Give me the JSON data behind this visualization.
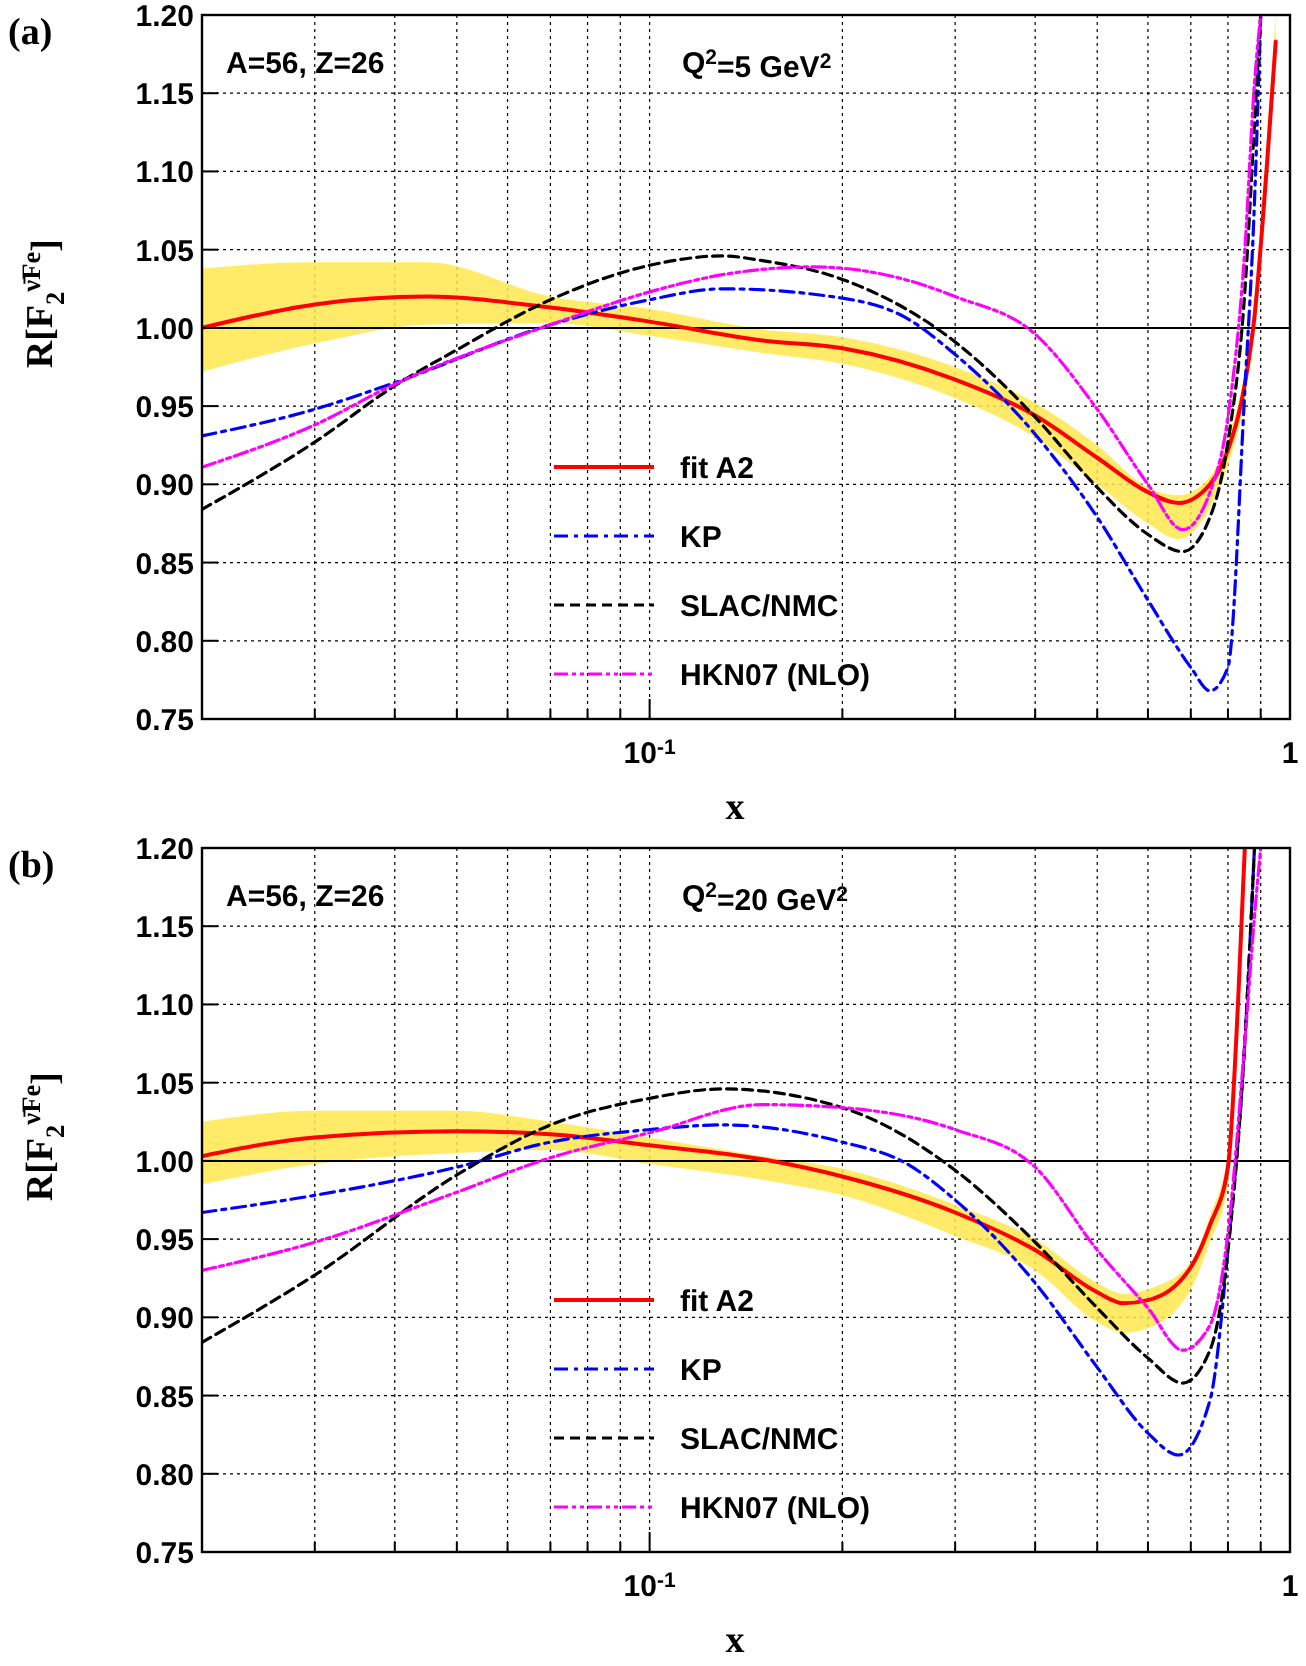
{
  "chart_data": [
    {
      "type": "line",
      "title": "(a)",
      "xlabel": "x",
      "ylabel": "R[F$_{2}$$^{ν̄Fe}$]",
      "log": "x",
      "grid": true,
      "legend": "bottom",
      "xlim": [
        0.02,
        1
      ],
      "ylim": [
        0.75,
        1.2
      ],
      "xticks": [
        {
          "value": 0.02,
          "label": null
        },
        {
          "value": 0.03,
          "label": null
        },
        {
          "value": 0.04,
          "label": null
        },
        {
          "value": 0.05,
          "label": null
        },
        {
          "value": 0.06,
          "label": null
        },
        {
          "value": 0.07,
          "label": null
        },
        {
          "value": 0.08,
          "label": null
        },
        {
          "value": 0.09,
          "label": null
        },
        {
          "value": 0.1,
          "label": "10$^{-1}$"
        },
        {
          "value": 0.2,
          "label": null
        },
        {
          "value": 0.3,
          "label": null
        },
        {
          "value": 0.4,
          "label": null
        },
        {
          "value": 0.5,
          "label": null
        },
        {
          "value": 0.6,
          "label": null
        },
        {
          "value": 0.7,
          "label": null
        },
        {
          "value": 0.8,
          "label": null
        },
        {
          "value": 0.9,
          "label": null
        },
        {
          "value": 1,
          "label": "1"
        }
      ],
      "yticks": [
        {
          "value": 0.75,
          "label": "0.75"
        },
        {
          "value": 0.8,
          "label": "0.80"
        },
        {
          "value": 0.85,
          "label": "0.85"
        },
        {
          "value": 0.9,
          "label": "0.90"
        },
        {
          "value": 0.95,
          "label": "0.95"
        },
        {
          "value": 1.0,
          "label": "1.00"
        },
        {
          "value": 1.05,
          "label": "1.05"
        },
        {
          "value": 1.1,
          "label": "1.10"
        },
        {
          "value": 1.15,
          "label": "1.15"
        },
        {
          "value": 1.2,
          "label": "1.20"
        }
      ],
      "ref_lines": [
        {
          "axis": "y",
          "value": 1.0,
          "color": "#000000",
          "line_style": "solid"
        }
      ],
      "annotations": [
        "A=56, Z=26",
        "Q$^{2}$=5 GeV$^{2}$"
      ],
      "series": [
        {
          "name": "fit A2",
          "color": "#ff0000",
          "line_style": "solid",
          "x": [
            0.02,
            0.03,
            0.045,
            0.07,
            0.1,
            0.15,
            0.2,
            0.3,
            0.4,
            0.5,
            0.6,
            0.67,
            0.75,
            0.8,
            0.85,
            0.88,
            0.92,
            0.95
          ],
          "values": [
            1.0,
            1.015,
            1.02,
            1.013,
            1.004,
            0.992,
            0.987,
            0.967,
            0.944,
            0.917,
            0.895,
            0.888,
            0.9,
            0.922,
            0.964,
            1.007,
            1.103,
            1.183
          ],
          "lower": [
            0.972,
            0.99,
            1.002,
            1.003,
            0.995,
            0.984,
            0.977,
            0.955,
            0.93,
            0.9,
            0.875,
            0.865,
            0.885,
            0.912,
            0.955,
            0.998,
            1.09,
            1.17
          ],
          "upper": [
            1.038,
            1.042,
            1.042,
            1.02,
            1.012,
            0.999,
            0.994,
            0.975,
            0.952,
            0.925,
            0.898,
            0.893,
            0.905,
            0.93,
            0.972,
            1.015,
            1.12,
            1.2
          ]
        },
        {
          "name": "KP",
          "color": "#0000ff",
          "line_style": "dashdot",
          "x": [
            0.02,
            0.03,
            0.04,
            0.07,
            0.1,
            0.13,
            0.2,
            0.25,
            0.3,
            0.4,
            0.5,
            0.6,
            0.7,
            0.75,
            0.8,
            0.85,
            0.88,
            0.9
          ],
          "values": [
            0.931,
            0.948,
            0.965,
            1.002,
            1.018,
            1.025,
            1.019,
            1.007,
            0.983,
            0.932,
            0.879,
            0.826,
            0.783,
            0.768,
            0.783,
            0.96,
            1.08,
            1.2
          ]
        },
        {
          "name": "SLAC/NMC",
          "color": "#000000",
          "line_style": "dashed",
          "x": [
            0.02,
            0.03,
            0.04,
            0.05,
            0.07,
            0.1,
            0.13,
            0.15,
            0.2,
            0.3,
            0.4,
            0.5,
            0.6,
            0.68,
            0.75,
            0.8,
            0.85,
            0.88,
            0.9
          ],
          "values": [
            0.884,
            0.927,
            0.963,
            0.986,
            1.018,
            1.04,
            1.046,
            1.043,
            1.031,
            0.991,
            0.943,
            0.898,
            0.868,
            0.857,
            0.879,
            0.927,
            1.023,
            1.13,
            1.2
          ]
        },
        {
          "name": "HKN07 (NLO)",
          "color": "#ff00ff",
          "line_style": "dashdotdot",
          "x": [
            0.02,
            0.03,
            0.04,
            0.07,
            0.1,
            0.13,
            0.18,
            0.25,
            0.3,
            0.4,
            0.5,
            0.6,
            0.68,
            0.75,
            0.8,
            0.85,
            0.88,
            0.9
          ],
          "values": [
            0.911,
            0.938,
            0.964,
            1.002,
            1.023,
            1.034,
            1.039,
            1.031,
            1.02,
            0.996,
            0.948,
            0.9,
            0.871,
            0.895,
            0.943,
            1.05,
            1.156,
            1.2
          ]
        }
      ]
    },
    {
      "type": "line",
      "title": "(b)",
      "xlabel": "x",
      "ylabel": "R[F$_{2}$$^{ν̄Fe}$]",
      "log": "x",
      "grid": true,
      "legend": "bottom",
      "xlim": [
        0.02,
        1
      ],
      "ylim": [
        0.75,
        1.2
      ],
      "xticks": [
        {
          "value": 0.02,
          "label": null
        },
        {
          "value": 0.03,
          "label": null
        },
        {
          "value": 0.04,
          "label": null
        },
        {
          "value": 0.05,
          "label": null
        },
        {
          "value": 0.06,
          "label": null
        },
        {
          "value": 0.07,
          "label": null
        },
        {
          "value": 0.08,
          "label": null
        },
        {
          "value": 0.09,
          "label": null
        },
        {
          "value": 0.1,
          "label": "10$^{-1}$"
        },
        {
          "value": 0.2,
          "label": null
        },
        {
          "value": 0.3,
          "label": null
        },
        {
          "value": 0.4,
          "label": null
        },
        {
          "value": 0.5,
          "label": null
        },
        {
          "value": 0.6,
          "label": null
        },
        {
          "value": 0.7,
          "label": null
        },
        {
          "value": 0.8,
          "label": null
        },
        {
          "value": 0.9,
          "label": null
        },
        {
          "value": 1,
          "label": "1"
        }
      ],
      "yticks": [
        {
          "value": 0.75,
          "label": "0.75"
        },
        {
          "value": 0.8,
          "label": "0.80"
        },
        {
          "value": 0.85,
          "label": "0.85"
        },
        {
          "value": 0.9,
          "label": "0.90"
        },
        {
          "value": 0.95,
          "label": "0.95"
        },
        {
          "value": 1.0,
          "label": "1.00"
        },
        {
          "value": 1.05,
          "label": "1.05"
        },
        {
          "value": 1.1,
          "label": "1.10"
        },
        {
          "value": 1.15,
          "label": "1.15"
        },
        {
          "value": 1.2,
          "label": "1.20"
        }
      ],
      "ref_lines": [
        {
          "axis": "y",
          "value": 1.0,
          "color": "#000000",
          "line_style": "solid"
        }
      ],
      "annotations": [
        "A=56, Z=26",
        "Q$^{2}$=20 GeV$^{2}$"
      ],
      "series": [
        {
          "name": "fit A2",
          "color": "#ff0000",
          "line_style": "solid",
          "x": [
            0.02,
            0.03,
            0.05,
            0.07,
            0.1,
            0.15,
            0.2,
            0.3,
            0.4,
            0.5,
            0.55,
            0.6,
            0.7,
            0.75,
            0.8,
            0.83,
            0.85
          ],
          "values": [
            1.003,
            1.015,
            1.019,
            1.017,
            1.01,
            1.001,
            0.99,
            0.967,
            0.943,
            0.916,
            0.909,
            0.911,
            0.932,
            0.959,
            0.996,
            1.103,
            1.2
          ],
          "lower": [
            0.985,
            0.998,
            1.005,
            1.007,
            0.998,
            0.988,
            0.978,
            0.952,
            0.93,
            0.897,
            0.89,
            0.893,
            0.918,
            0.948,
            0.985,
            1.09,
            1.19
          ],
          "upper": [
            1.025,
            1.032,
            1.032,
            1.025,
            1.015,
            1.003,
            0.995,
            0.972,
            0.95,
            0.922,
            0.915,
            0.918,
            0.935,
            0.965,
            1.005,
            1.115,
            1.2
          ]
        },
        {
          "name": "KP",
          "color": "#0000ff",
          "line_style": "dashdot",
          "x": [
            0.02,
            0.03,
            0.05,
            0.07,
            0.1,
            0.13,
            0.2,
            0.25,
            0.3,
            0.4,
            0.5,
            0.6,
            0.67,
            0.75,
            0.8,
            0.85,
            0.88
          ],
          "values": [
            0.967,
            0.978,
            0.996,
            1.012,
            1.02,
            1.023,
            1.012,
            0.999,
            0.975,
            0.922,
            0.868,
            0.826,
            0.812,
            0.847,
            0.943,
            1.076,
            1.2
          ]
        },
        {
          "name": "SLAC/NMC",
          "color": "#000000",
          "line_style": "dashed",
          "x": [
            0.02,
            0.03,
            0.05,
            0.07,
            0.1,
            0.13,
            0.2,
            0.3,
            0.4,
            0.5,
            0.6,
            0.68,
            0.75,
            0.8,
            0.85,
            0.88
          ],
          "values": [
            0.884,
            0.927,
            0.991,
            1.023,
            1.04,
            1.046,
            1.034,
            0.994,
            0.948,
            0.906,
            0.874,
            0.858,
            0.879,
            0.943,
            1.076,
            1.2
          ]
        },
        {
          "name": "HKN07 (NLO)",
          "color": "#ff00ff",
          "line_style": "dashdotdot",
          "x": [
            0.02,
            0.03,
            0.05,
            0.07,
            0.1,
            0.15,
            0.2,
            0.3,
            0.4,
            0.5,
            0.6,
            0.68,
            0.75,
            0.8,
            0.85,
            0.88,
            0.9
          ],
          "values": [
            0.93,
            0.948,
            0.98,
            1.002,
            1.018,
            1.036,
            1.034,
            1.02,
            0.996,
            0.943,
            0.906,
            0.879,
            0.895,
            0.954,
            1.076,
            1.156,
            1.2
          ]
        }
      ]
    }
  ]
}
